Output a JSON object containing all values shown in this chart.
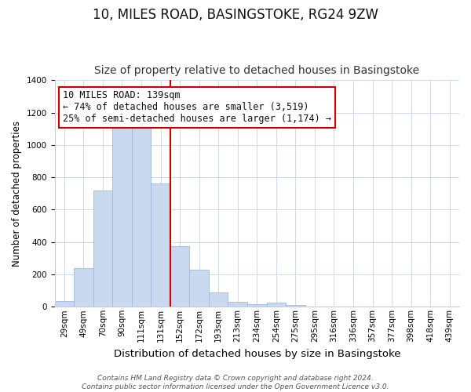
{
  "title": "10, MILES ROAD, BASINGSTOKE, RG24 9ZW",
  "subtitle": "Size of property relative to detached houses in Basingstoke",
  "xlabel": "Distribution of detached houses by size in Basingstoke",
  "ylabel": "Number of detached properties",
  "categories": [
    "29sqm",
    "49sqm",
    "70sqm",
    "90sqm",
    "111sqm",
    "131sqm",
    "152sqm",
    "172sqm",
    "193sqm",
    "213sqm",
    "234sqm",
    "254sqm",
    "275sqm",
    "295sqm",
    "316sqm",
    "336sqm",
    "357sqm",
    "377sqm",
    "398sqm",
    "418sqm",
    "439sqm"
  ],
  "values": [
    35,
    240,
    720,
    1105,
    1120,
    760,
    375,
    230,
    90,
    30,
    15,
    25,
    10,
    0,
    0,
    0,
    0,
    0,
    0,
    0,
    0
  ],
  "bar_color": "#c8d9f0",
  "bar_edge_color": "#a0b8d8",
  "vline_x_index": 5,
  "vline_color": "#cc0000",
  "annotation_line1": "10 MILES ROAD: 139sqm",
  "annotation_line2": "← 74% of detached houses are smaller (3,519)",
  "annotation_line3": "25% of semi-detached houses are larger (1,174) →",
  "annotation_box_color": "#ffffff",
  "annotation_box_edge": "#cc0000",
  "ylim": [
    0,
    1400
  ],
  "yticks": [
    0,
    200,
    400,
    600,
    800,
    1000,
    1200,
    1400
  ],
  "footer_line1": "Contains HM Land Registry data © Crown copyright and database right 2024.",
  "footer_line2": "Contains public sector information licensed under the Open Government Licence v3.0.",
  "title_fontsize": 12,
  "subtitle_fontsize": 10,
  "xlabel_fontsize": 9.5,
  "ylabel_fontsize": 8.5,
  "tick_fontsize": 7.5,
  "annotation_fontsize": 8.5,
  "footer_fontsize": 6.5,
  "grid_color": "#d0d8e8",
  "background_color": "#ffffff"
}
